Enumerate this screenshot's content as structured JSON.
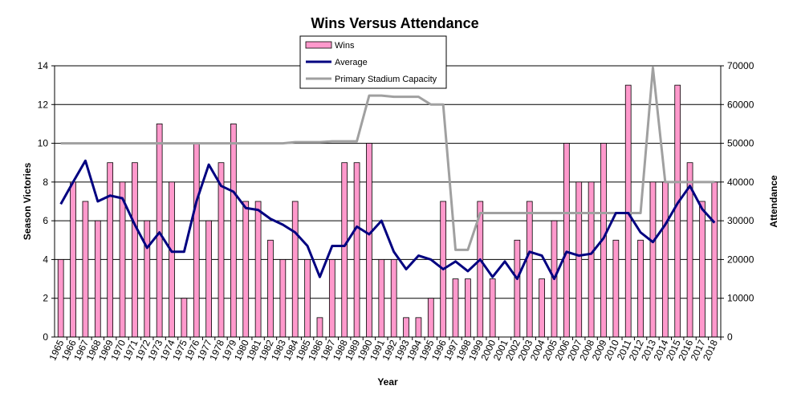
{
  "chart_data": {
    "type": "bar+line",
    "title": "Wins Versus Attendance",
    "xlabel": "Year",
    "ylabel_left": "Season Victories",
    "ylabel_right": "Attendance",
    "ylim_left": [
      0,
      14
    ],
    "ylim_right": [
      0,
      70000
    ],
    "yticks_left": [
      "0",
      "2",
      "4",
      "6",
      "8",
      "10",
      "12",
      "14"
    ],
    "yticks_right": [
      "0",
      "10000",
      "20000",
      "30000",
      "40000",
      "50000",
      "60000",
      "70000"
    ],
    "grid": true,
    "legend_position": "top-center",
    "categories": [
      "1965",
      "1966",
      "1967",
      "1968",
      "1969",
      "1970",
      "1971",
      "1972",
      "1973",
      "1974",
      "1975",
      "1976",
      "1977",
      "1978",
      "1979",
      "1980",
      "1981",
      "1982",
      "1983",
      "1984",
      "1985",
      "1986",
      "1987",
      "1988",
      "1989",
      "1990",
      "1991",
      "1992",
      "1993",
      "1994",
      "1995",
      "1996",
      "1997",
      "1998",
      "1999",
      "2000",
      "2001",
      "2002",
      "2003",
      "2004",
      "2005",
      "2006",
      "2007",
      "2008",
      "2009",
      "2010",
      "2011",
      "2012",
      "2013",
      "2014",
      "2015",
      "2016",
      "2017",
      "2018"
    ],
    "series": [
      {
        "name": "Wins",
        "type": "bar",
        "axis": "left",
        "color": "#ff99cc",
        "values": [
          4,
          8,
          7,
          6,
          9,
          8,
          9,
          6,
          11,
          8,
          2,
          10,
          6,
          9,
          11,
          7,
          7,
          5,
          4,
          7,
          4,
          1,
          4,
          9,
          9,
          10,
          4,
          4,
          1,
          1,
          2,
          7,
          3,
          3,
          7,
          3,
          0,
          5,
          7,
          3,
          6,
          10,
          8,
          8,
          10,
          5,
          13,
          5,
          8,
          8,
          13,
          9,
          7,
          8
        ]
      },
      {
        "name": "Average",
        "type": "line",
        "axis": "right",
        "color": "#000080",
        "values": [
          34300,
          40000,
          45500,
          35000,
          36500,
          35800,
          29000,
          23000,
          27000,
          22000,
          22000,
          35000,
          44500,
          39000,
          37500,
          33300,
          32800,
          30500,
          29000,
          27000,
          23500,
          15500,
          23500,
          23500,
          28500,
          26500,
          30000,
          22000,
          17500,
          21000,
          20000,
          17500,
          19500,
          17000,
          20000,
          15500,
          19500,
          15000,
          22000,
          21000,
          15000,
          22000,
          21000,
          21500,
          25500,
          32000,
          32000,
          27000,
          24500,
          29000,
          34500,
          39000,
          33000,
          29500
        ]
      },
      {
        "name": "Primary Stadium Capacity",
        "type": "line",
        "axis": "right",
        "color": "#a0a0a0",
        "values": [
          50000,
          50000,
          50000,
          50000,
          50000,
          50000,
          50000,
          50000,
          50000,
          50000,
          50000,
          50000,
          50000,
          50000,
          50000,
          50000,
          50000,
          50000,
          50000,
          50300,
          50300,
          50300,
          50500,
          50500,
          50500,
          62300,
          62300,
          62000,
          62000,
          62000,
          60000,
          60000,
          22500,
          22500,
          32000,
          32000,
          32000,
          32000,
          32000,
          32000,
          32000,
          32000,
          32000,
          32000,
          32000,
          32000,
          32000,
          32000,
          69500,
          40000,
          40000,
          40000,
          40000,
          40000
        ]
      }
    ]
  }
}
